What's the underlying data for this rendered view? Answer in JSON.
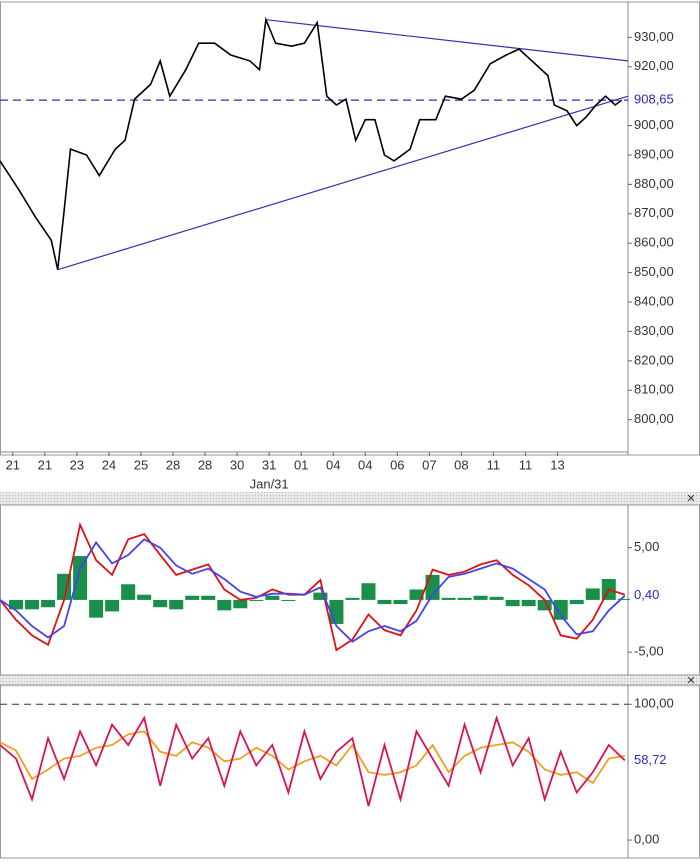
{
  "chart_data": [
    {
      "type": "line",
      "color": "#000000",
      "x": [
        0,
        3,
        6,
        11,
        16,
        18,
        20,
        22,
        27,
        31,
        36,
        39,
        42,
        47,
        50,
        53,
        58,
        62,
        67,
        72,
        78,
        81,
        83,
        86,
        91,
        95,
        99,
        102,
        105,
        108,
        111,
        114,
        117,
        120,
        123,
        128,
        131,
        136,
        139,
        144,
        148,
        153,
        158,
        162,
        167,
        171,
        173,
        177,
        180,
        183,
        186,
        189,
        192,
        194
      ],
      "values": [
        888,
        883,
        878,
        869,
        861,
        851,
        871,
        892,
        890,
        883,
        892,
        895,
        909,
        914,
        922,
        910,
        919,
        928,
        928,
        924,
        922,
        919,
        936,
        928,
        927,
        928,
        935,
        910,
        907,
        909,
        895,
        902,
        902,
        890,
        888,
        892,
        902,
        902,
        910,
        909,
        912,
        921,
        924,
        926,
        921,
        917,
        907,
        905,
        900,
        903,
        907,
        910,
        907,
        908.65
      ],
      "xlim": [
        0,
        196
      ],
      "ylim": [
        789,
        941
      ],
      "xticks": [
        {
          "value": 4,
          "label": "21"
        },
        {
          "value": 14,
          "label": "21"
        },
        {
          "value": 24,
          "label": "23"
        },
        {
          "value": 34,
          "label": "24"
        },
        {
          "value": 44,
          "label": "25"
        },
        {
          "value": 54,
          "label": "28"
        },
        {
          "value": 64,
          "label": "28"
        },
        {
          "value": 74,
          "label": "30"
        },
        {
          "value": 84,
          "label": "31"
        },
        {
          "value": 94,
          "label": "01"
        },
        {
          "value": 104,
          "label": "04"
        },
        {
          "value": 114,
          "label": "04"
        },
        {
          "value": 124,
          "label": "06"
        },
        {
          "value": 134,
          "label": "07"
        },
        {
          "value": 144,
          "label": "08"
        },
        {
          "value": 154,
          "label": "11"
        },
        {
          "value": 164,
          "label": "11"
        },
        {
          "value": 174,
          "label": "13"
        }
      ],
      "x_sublabel": {
        "value": 84,
        "label": "Jan/31"
      },
      "yticks": [
        {
          "value": 930,
          "label": "930,00"
        },
        {
          "value": 920,
          "label": "920,00"
        },
        {
          "value": 900,
          "label": "900,00"
        },
        {
          "value": 890,
          "label": "890,00"
        },
        {
          "value": 880,
          "label": "880,00"
        },
        {
          "value": 870,
          "label": "870,00"
        },
        {
          "value": 860,
          "label": "860,00"
        },
        {
          "value": 850,
          "label": "850,00"
        },
        {
          "value": 840,
          "label": "840,00"
        },
        {
          "value": 830,
          "label": "830,00"
        },
        {
          "value": 820,
          "label": "820,00"
        },
        {
          "value": 810,
          "label": "810,00"
        },
        {
          "value": 800,
          "label": "800,00"
        }
      ],
      "ref_line": {
        "value": 908.65,
        "label": "908,65",
        "color": "#2b2bbf",
        "dashed": true
      },
      "trendlines": [
        {
          "x": [
            83,
            196
          ],
          "y": [
            936,
            922
          ],
          "color": "#3333aa"
        },
        {
          "x": [
            18,
            196
          ],
          "y": [
            851,
            910
          ],
          "color": "#3333aa"
        }
      ]
    },
    {
      "type": "line",
      "xlim": [
        0,
        196
      ],
      "ylim": [
        -6.9,
        8.8
      ],
      "x": [
        0,
        5,
        10,
        15,
        20,
        25,
        30,
        35,
        40,
        45,
        50,
        55,
        60,
        65,
        70,
        75,
        80,
        85,
        90,
        95,
        100,
        105,
        110,
        115,
        120,
        125,
        130,
        135,
        140,
        145,
        150,
        155,
        160,
        165,
        170,
        175,
        180,
        185,
        190,
        195
      ],
      "series": [
        {
          "type": "bar",
          "color": "#1a8f4a",
          "values": [
            0,
            -0.9,
            -0.9,
            -0.7,
            2.5,
            4.2,
            -1.7,
            -1.1,
            1.5,
            0.5,
            -0.7,
            -0.9,
            0.4,
            0.4,
            -1,
            -0.8,
            -0.1,
            0.4,
            -0.1,
            0,
            0.7,
            -2.3,
            0.2,
            1.6,
            -0.4,
            -0.4,
            1,
            2.4,
            0.2,
            0.2,
            0.4,
            0.3,
            -0.6,
            -0.6,
            -1,
            -1.9,
            -0.4,
            1.1,
            2,
            0.1
          ]
        },
        {
          "type": "line",
          "color": "#dd1111",
          "values": [
            0,
            -1.9,
            -3.4,
            -4.3,
            0,
            7.2,
            3.8,
            2.4,
            5.8,
            6.3,
            4.3,
            2.4,
            2.9,
            3.4,
            1,
            0,
            0.2,
            1,
            0.5,
            0.5,
            1.9,
            -4.8,
            -3.8,
            -1.4,
            -2.9,
            -3.4,
            -1,
            2.9,
            2.4,
            2.7,
            3.4,
            3.8,
            2.4,
            1.4,
            0,
            -3.4,
            -3.7,
            -1.9,
            1,
            0.5
          ]
        },
        {
          "type": "line",
          "color": "#4444ee",
          "values": [
            0,
            -1,
            -2.5,
            -3.6,
            -2.5,
            3,
            5.5,
            3.5,
            4.3,
            5.8,
            5,
            3.3,
            2.5,
            3,
            2,
            0.8,
            0.3,
            0.6,
            0.6,
            0.5,
            1.2,
            -2.5,
            -4,
            -3,
            -2.5,
            -3,
            -2,
            0.5,
            2.2,
            2.5,
            3,
            3.5,
            3,
            2,
            1,
            -1.5,
            -3.3,
            -3,
            -1,
            0.4
          ]
        }
      ],
      "yticks": [
        {
          "value": 5,
          "label": "5,00"
        },
        {
          "value": -5,
          "label": "-5,00"
        }
      ],
      "ref_line": {
        "value": 0.4,
        "label": "0,40",
        "color": "#2b2bbf",
        "dashed": false
      }
    },
    {
      "type": "line",
      "xlim": [
        0,
        196
      ],
      "ylim": [
        -11,
        112
      ],
      "x": [
        0,
        5,
        10,
        15,
        20,
        25,
        30,
        35,
        40,
        45,
        50,
        55,
        60,
        65,
        70,
        75,
        80,
        85,
        90,
        95,
        100,
        105,
        110,
        115,
        120,
        125,
        130,
        135,
        140,
        145,
        150,
        155,
        160,
        165,
        170,
        175,
        180,
        185,
        190,
        195
      ],
      "series": [
        {
          "type": "line",
          "color": "#f0a020",
          "values": [
            72,
            66,
            45,
            52,
            60,
            62,
            68,
            70,
            78,
            80,
            65,
            62,
            72,
            68,
            58,
            60,
            68,
            62,
            52,
            58,
            62,
            55,
            70,
            50,
            48,
            50,
            55,
            70,
            50,
            62,
            68,
            70,
            72,
            65,
            52,
            48,
            50,
            42,
            60,
            62
          ]
        },
        {
          "type": "line",
          "color": "#dd1155",
          "values": [
            70,
            60,
            30,
            75,
            45,
            80,
            55,
            85,
            70,
            90,
            40,
            85,
            60,
            75,
            40,
            80,
            55,
            70,
            35,
            80,
            45,
            65,
            75,
            25,
            70,
            30,
            80,
            60,
            40,
            85,
            50,
            90,
            55,
            75,
            30,
            65,
            35,
            50,
            70,
            58.72
          ]
        }
      ],
      "yticks": [
        {
          "value": 100,
          "label": "100,00"
        },
        {
          "value": 0,
          "label": "0,00"
        }
      ],
      "dashed_levels": [
        100
      ],
      "ref_line": {
        "value": 58.72,
        "label": "58,72",
        "color": "#2b2bbf",
        "dashed": false
      }
    }
  ]
}
